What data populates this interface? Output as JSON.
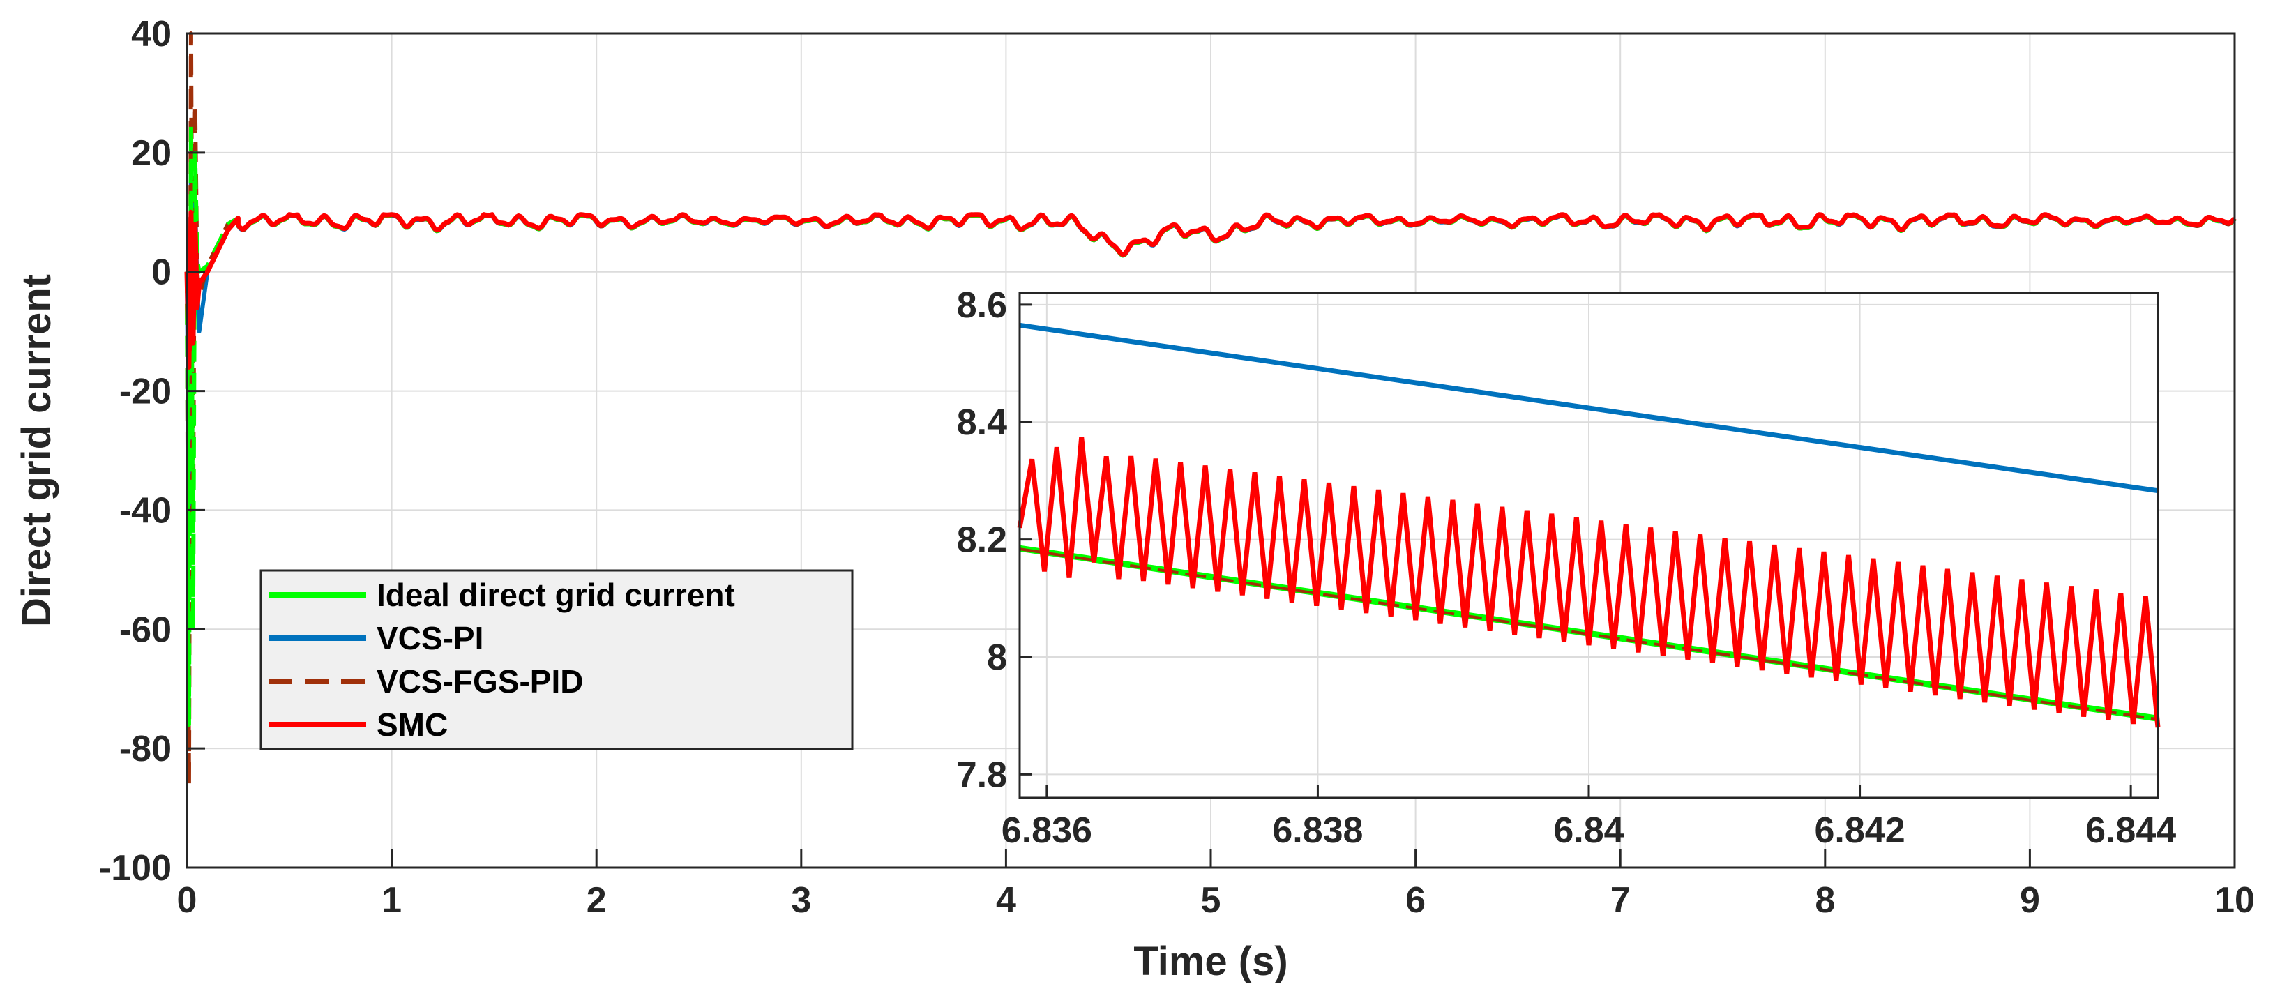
{
  "chart_data": {
    "type": "line",
    "title": "",
    "xlabel": "Time (s)",
    "ylabel": "Direct grid current",
    "xlim": [
      0,
      10
    ],
    "ylim": [
      -100,
      40
    ],
    "grid": true,
    "x_ticks": [
      "0",
      "1",
      "2",
      "3",
      "4",
      "5",
      "6",
      "7",
      "8",
      "9",
      "10"
    ],
    "y_ticks": [
      "40",
      "20",
      "0",
      "-20",
      "-40",
      "-60",
      "-80",
      "-100"
    ],
    "legend": {
      "location": "lower-left",
      "entries": [
        "Ideal direct grid current",
        "VCS-PI",
        "VCS-FGS-PID",
        "SMC"
      ]
    },
    "series": [
      {
        "name": "Ideal direct grid current",
        "color": "#00ff00",
        "style": "dashed",
        "x": [
          0,
          0.01,
          0.02,
          0.03,
          0.04,
          0.05,
          0.06,
          0.1,
          0.2,
          0.25,
          10
        ],
        "y": [
          0,
          -76,
          25,
          -60,
          20,
          2,
          0,
          1,
          8,
          9,
          8.6
        ]
      },
      {
        "name": "VCS-PI",
        "color": "#0072bd",
        "style": "solid",
        "x": [
          0,
          0.01,
          0.02,
          0.03,
          0.04,
          0.05,
          0.06,
          0.1,
          0.2,
          0.25,
          10
        ],
        "y": [
          0,
          -40,
          18,
          -14,
          12,
          -2,
          -10,
          0,
          7,
          9,
          8.6
        ]
      },
      {
        "name": "VCS-FGS-PID",
        "color": "#a0300a",
        "style": "dashed",
        "x": [
          0,
          0.01,
          0.02,
          0.03,
          0.04,
          0.05,
          0.06,
          0.1,
          0.2,
          0.25,
          10
        ],
        "y": [
          0,
          -86,
          40,
          -40,
          28,
          0,
          -4,
          1,
          8,
          9,
          8.6
        ]
      },
      {
        "name": "SMC",
        "color": "#ff0000",
        "style": "solid",
        "x": [
          0,
          0.01,
          0.02,
          0.03,
          0.04,
          0.05,
          0.06,
          0.1,
          0.2,
          0.25,
          10
        ],
        "y": [
          0,
          -16,
          10,
          -12,
          8,
          -6,
          -2,
          0,
          7,
          9,
          8.6
        ]
      }
    ],
    "inset": {
      "xlim": [
        6.8358,
        6.8442
      ],
      "ylim": [
        7.76,
        8.62
      ],
      "x_ticks": [
        "6.836",
        "6.838",
        "6.84",
        "6.842",
        "6.844"
      ],
      "y_ticks": [
        "8.6",
        "8.4",
        "8.2",
        "8",
        "7.8"
      ],
      "series": [
        {
          "name": "VCS-PI",
          "x": [
            6.8358,
            6.8442
          ],
          "y": [
            8.565,
            8.283
          ]
        },
        {
          "name": "Ideal direct grid current",
          "x": [
            6.8358,
            6.8442
          ],
          "y": [
            8.185,
            7.895
          ]
        },
        {
          "name": "VCS-FGS-PID",
          "x": [
            6.8358,
            6.8442
          ],
          "y": [
            8.185,
            7.895
          ]
        },
        {
          "name": "SMC",
          "x": [
            6.8358,
            6.8442
          ],
          "y_lower": [
            8.16,
            7.88
          ],
          "y_upper": [
            8.37,
            8.1
          ],
          "oscillations": 46
        }
      ]
    }
  }
}
